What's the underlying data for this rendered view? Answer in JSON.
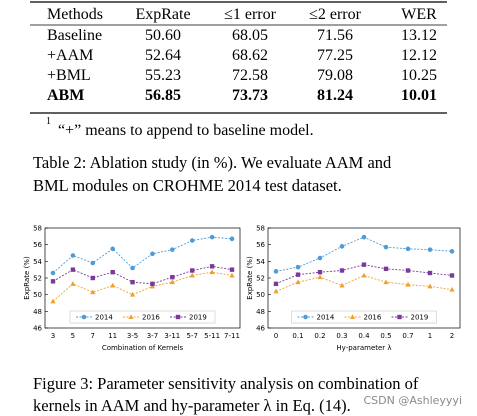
{
  "table": {
    "header": [
      "Methods",
      "ExpRate",
      "≤1 error",
      "≤2 error",
      "WER"
    ],
    "rows": [
      {
        "cells": [
          "Baseline",
          "50.60",
          "68.05",
          "71.56",
          "13.12"
        ],
        "bold": false
      },
      {
        "cells": [
          "+AAM",
          "52.64",
          "68.62",
          "77.25",
          "12.12"
        ],
        "bold": false
      },
      {
        "cells": [
          "+BML",
          "55.23",
          "72.58",
          "79.08",
          "10.25"
        ],
        "bold": false
      },
      {
        "cells": [
          "ABM",
          "56.85",
          "73.73",
          "81.24",
          "10.01"
        ],
        "bold": true
      }
    ],
    "footnote_mark": "1",
    "footnote": "“+” means to append to baseline model."
  },
  "table_caption": [
    "Table 2: Ablation study (in %). We evaluate AAM and",
    "BML modules on CROHME 2014 test dataset."
  ],
  "chart_data": [
    {
      "type": "line",
      "xlabel": "Combination of Kernels",
      "ylabel": "ExpRate (%)",
      "categories": [
        "3",
        "5",
        "7",
        "11",
        "3-5",
        "3-7",
        "3-11",
        "5-7",
        "5-11",
        "7-11"
      ],
      "ylim": [
        46,
        58
      ],
      "yticks": [
        46,
        48,
        50,
        52,
        54,
        56,
        58
      ],
      "legend": "lower center",
      "series": [
        {
          "name": "2014",
          "color": "#4f9bd6",
          "marker": "circle",
          "values": [
            52.6,
            54.7,
            53.8,
            55.5,
            53.2,
            54.9,
            55.4,
            56.5,
            56.9,
            56.7
          ]
        },
        {
          "name": "2016",
          "color": "#f0a030",
          "marker": "triangle",
          "values": [
            49.2,
            51.3,
            50.3,
            51.1,
            50.0,
            51.0,
            51.5,
            52.3,
            52.7,
            52.3
          ]
        },
        {
          "name": "2019",
          "color": "#7a3a9a",
          "marker": "square",
          "values": [
            51.6,
            53.0,
            52.0,
            52.7,
            51.5,
            51.3,
            52.1,
            52.9,
            53.4,
            53.0
          ]
        }
      ]
    },
    {
      "type": "line",
      "xlabel": "Hy-parameter λ",
      "ylabel": "ExpRate (%)",
      "categories": [
        "0",
        "0.1",
        "0.2",
        "0.3",
        "0.4",
        "0.5",
        "0.7",
        "1",
        "2"
      ],
      "ylim": [
        46,
        58
      ],
      "yticks": [
        46,
        48,
        50,
        52,
        54,
        56,
        58
      ],
      "legend": "lower center",
      "series": [
        {
          "name": "2014",
          "color": "#4f9bd6",
          "marker": "circle",
          "values": [
            52.8,
            53.3,
            54.4,
            55.8,
            56.9,
            55.7,
            55.5,
            55.4,
            55.2
          ]
        },
        {
          "name": "2016",
          "color": "#f0a030",
          "marker": "triangle",
          "values": [
            50.4,
            51.5,
            52.1,
            51.1,
            52.3,
            51.5,
            51.2,
            51.0,
            50.6
          ]
        },
        {
          "name": "2019",
          "color": "#7a3a9a",
          "marker": "square",
          "values": [
            51.3,
            52.4,
            52.7,
            52.9,
            53.6,
            53.1,
            52.9,
            52.6,
            52.3
          ]
        }
      ]
    }
  ],
  "figure_caption": [
    "Figure 3: Parameter sensitivity analysis on combination of",
    "kernels in AAM and hy-parameter λ in Eq. (14)."
  ],
  "watermark": "CSDN @Ashleyyyi"
}
